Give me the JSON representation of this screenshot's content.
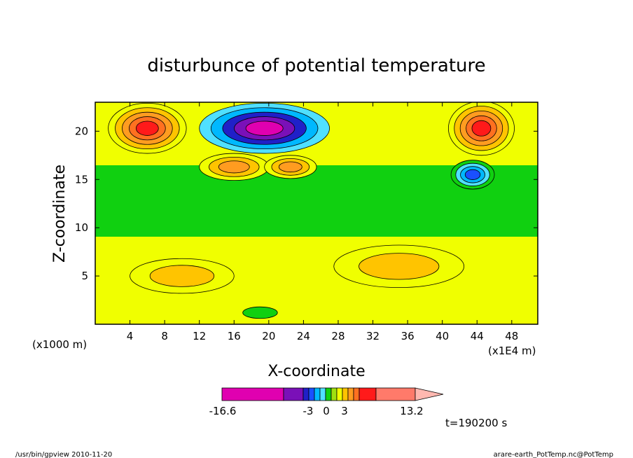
{
  "chart_data": {
    "type": "heatmap",
    "title": "disturbunce of potential temperature",
    "xlabel": "X-coordinate",
    "ylabel": "Z-coordinate",
    "x_unit_left": "(x1000 m)",
    "x_unit_right": "(x1E4 m)",
    "xlim": [
      0,
      51
    ],
    "ylim": [
      0,
      23
    ],
    "x_ticks": [
      "4",
      "8",
      "12",
      "16",
      "20",
      "24",
      "28",
      "32",
      "36",
      "40",
      "44",
      "48"
    ],
    "x_tick_values": [
      4,
      8,
      12,
      16,
      20,
      24,
      28,
      32,
      36,
      40,
      44,
      48
    ],
    "y_ticks": [
      "5",
      "10",
      "15",
      "20"
    ],
    "y_tick_values": [
      5,
      10,
      15,
      20
    ],
    "colorbar": {
      "labels": [
        "-16.6",
        "-3",
        "0",
        "3",
        "13.2"
      ],
      "colors": [
        "#e000b0",
        "#7a10b8",
        "#2020c8",
        "#1a50ff",
        "#00b8ff",
        "#50e0ff",
        "#10d010",
        "#a0e010",
        "#f0ff00",
        "#ffc400",
        "#ff9c20",
        "#ff7020",
        "#ff1a1a",
        "#ff7a6a",
        "#ffb8b0"
      ]
    },
    "time_label": "t=190200 s",
    "features": [
      {
        "x": 6,
        "z": 20.3,
        "rx": 4.5,
        "rz": 2.6,
        "value": 9
      },
      {
        "x": 44.5,
        "z": 20.3,
        "rx": 3.8,
        "rz": 2.8,
        "value": 9
      },
      {
        "x": 19.5,
        "z": 20.3,
        "rx": 7.5,
        "rz": 2.6,
        "value": -12
      },
      {
        "x": 43.5,
        "z": 15.5,
        "rx": 2.5,
        "rz": 1.5,
        "value": -4
      },
      {
        "x": 16,
        "z": 16.3,
        "rx": 4,
        "rz": 1.4,
        "value": 2
      },
      {
        "x": 22.5,
        "z": 16.3,
        "rx": 3,
        "rz": 1.2,
        "value": 2
      },
      {
        "x": 10,
        "z": 5,
        "rx": 6,
        "rz": 1.8,
        "value": 1.5
      },
      {
        "x": 35,
        "z": 6,
        "rx": 7.5,
        "rz": 2.2,
        "value": 1.5
      },
      {
        "x": 19,
        "z": 1.2,
        "rx": 2,
        "rz": 0.6,
        "value": -1
      }
    ]
  },
  "footer": {
    "left": "/usr/bin/gpview   2010-11-20",
    "right": "arare-earth_PotTemp.nc@PotTemp"
  }
}
